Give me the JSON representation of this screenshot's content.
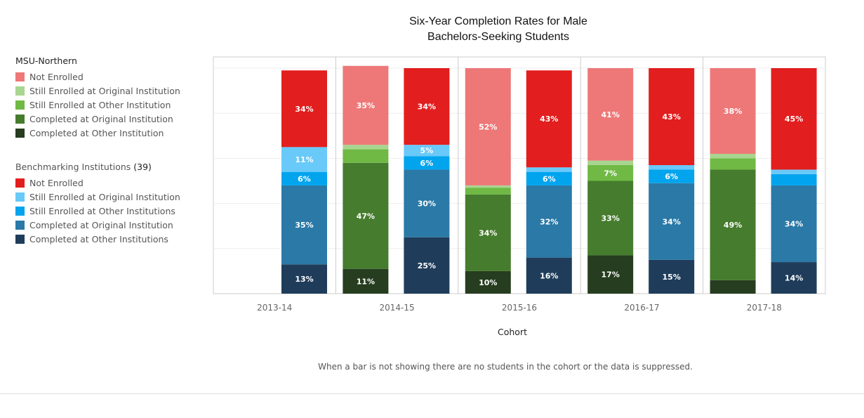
{
  "chart_data": {
    "type": "bar",
    "stacked": true,
    "title": "Six-Year Completion Rates for Male Bachelors-Seeking Students",
    "title_lines": [
      "Six-Year Completion Rates for Male",
      "Bachelors-Seeking Students"
    ],
    "xlabel": "Cohort",
    "ylabel": "",
    "ylim": [
      0,
      100
    ],
    "grid": true,
    "categories": [
      "2013-14",
      "2014-15",
      "2015-16",
      "2016-17",
      "2017-18"
    ],
    "groups": [
      {
        "name": "MSU-Northern",
        "series": [
          {
            "name": "Completed at Other Institution",
            "color": "#263d1f",
            "values": [
              null,
              11,
              10,
              17,
              6
            ],
            "labels": [
              null,
              "11%",
              "10%",
              "17%",
              null
            ]
          },
          {
            "name": "Completed at Original Institution",
            "color": "#467c2d",
            "values": [
              null,
              47,
              34,
              33,
              49
            ],
            "labels": [
              null,
              "47%",
              "34%",
              "33%",
              "49%"
            ]
          },
          {
            "name": "Still Enrolled at Other Institution",
            "color": "#6fb944",
            "values": [
              null,
              6,
              3,
              7,
              5
            ],
            "labels": [
              null,
              null,
              null,
              "7%",
              null
            ]
          },
          {
            "name": "Still Enrolled at Original Institution",
            "color": "#a8d58f",
            "values": [
              null,
              2,
              1,
              2,
              2
            ],
            "labels": [
              null,
              null,
              null,
              null,
              null
            ]
          },
          {
            "name": "Not Enrolled",
            "color": "#ee7878",
            "values": [
              null,
              35,
              52,
              41,
              38
            ],
            "labels": [
              null,
              "35%",
              "52%",
              "41%",
              "38%"
            ]
          }
        ]
      },
      {
        "name": "Benchmarking Institutions",
        "count": "(39)",
        "series": [
          {
            "name": "Completed at Other Institutions",
            "color": "#1f3d5b",
            "values": [
              13,
              25,
              16,
              15,
              14
            ],
            "labels": [
              "13%",
              "25%",
              "16%",
              "15%",
              "14%"
            ]
          },
          {
            "name": "Completed at Original Institution",
            "color": "#2a79a7",
            "values": [
              35,
              30,
              32,
              34,
              34
            ],
            "labels": [
              "35%",
              "30%",
              "32%",
              "34%",
              "34%"
            ]
          },
          {
            "name": "Still Enrolled at Other Institutions",
            "color": "#02a4ee",
            "values": [
              6,
              6,
              6,
              6,
              5
            ],
            "labels": [
              "6%",
              "6%",
              "6%",
              "6%",
              null
            ]
          },
          {
            "name": "Still Enrolled at Original Institution",
            "color": "#69c9f9",
            "values": [
              11,
              5,
              2,
              2,
              2
            ],
            "labels": [
              "11%",
              "5%",
              null,
              null,
              null
            ]
          },
          {
            "name": "Not Enrolled",
            "color": "#e21e1e",
            "values": [
              34,
              34,
              43,
              43,
              45
            ],
            "labels": [
              "34%",
              "34%",
              "43%",
              "43%",
              "45%"
            ]
          }
        ]
      }
    ],
    "legend_placement": "left"
  },
  "legend": {
    "msu": {
      "title": "MSU-Northern",
      "items": [
        {
          "label": "Not Enrolled",
          "color": "#ee7878"
        },
        {
          "label": "Still Enrolled at Original Institution",
          "color": "#a8d58f"
        },
        {
          "label": "Still Enrolled at Other Institution",
          "color": "#6fb944"
        },
        {
          "label": "Completed at Original Institution",
          "color": "#467c2d"
        },
        {
          "label": "Completed at Other Institution",
          "color": "#263d1f"
        }
      ]
    },
    "bench": {
      "title": "Benchmarking Institutions",
      "count": "(39)",
      "items": [
        {
          "label": "Not Enrolled",
          "color": "#e21e1e"
        },
        {
          "label": "Still Enrolled at Original Institution",
          "color": "#69c9f9"
        },
        {
          "label": "Still Enrolled at Other Institutions",
          "color": "#02a4ee"
        },
        {
          "label": "Completed at Original Institution",
          "color": "#2a79a7"
        },
        {
          "label": "Completed at Other Institutions",
          "color": "#1f3d5b"
        }
      ]
    }
  },
  "note": "When a bar is not showing there are no students in the cohort or the data is suppressed."
}
